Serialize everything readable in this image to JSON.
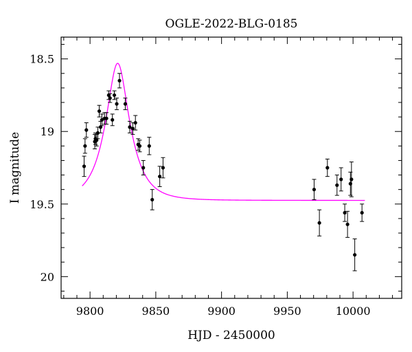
{
  "chart_data": {
    "type": "scatter",
    "title": "OGLE-2022-BLG-0185",
    "xlabel": "HJD - 2450000",
    "ylabel": "I magnitude",
    "xlim": [
      9778,
      10037
    ],
    "ylim": [
      20.15,
      18.35
    ],
    "y_inverted": true,
    "grid": false,
    "legend": "none",
    "x_major_ticks": [
      9800,
      9850,
      9900,
      9950,
      10000
    ],
    "x_tick_labels": [
      "9800",
      "9850",
      "9900",
      "9950",
      "10000"
    ],
    "x_minor_step": 10,
    "y_major_ticks": [
      18.5,
      19,
      19.5,
      20
    ],
    "y_tick_labels": [
      "18.5",
      "19",
      "19.5",
      "20"
    ],
    "y_minor_step": 0.1,
    "colors": {
      "points": "#000000",
      "model": "#ff00ff",
      "axes": "#000000"
    },
    "series": [
      {
        "name": "data",
        "points": [
          {
            "x": 9795.5,
            "y": 19.24,
            "err": 0.07
          },
          {
            "x": 9796.2,
            "y": 19.1,
            "err": 0.05
          },
          {
            "x": 9797.2,
            "y": 18.99,
            "err": 0.05
          },
          {
            "x": 9803.6,
            "y": 19.07,
            "err": 0.05
          },
          {
            "x": 9804.1,
            "y": 19.05,
            "err": 0.04
          },
          {
            "x": 9805.0,
            "y": 19.06,
            "err": 0.04
          },
          {
            "x": 9805.9,
            "y": 19.01,
            "err": 0.04
          },
          {
            "x": 9807.0,
            "y": 18.86,
            "err": 0.04
          },
          {
            "x": 9808.0,
            "y": 18.97,
            "err": 0.04
          },
          {
            "x": 9809.0,
            "y": 18.92,
            "err": 0.04
          },
          {
            "x": 9811.0,
            "y": 18.91,
            "err": 0.04
          },
          {
            "x": 9812.5,
            "y": 18.91,
            "err": 0.04
          },
          {
            "x": 9814.2,
            "y": 18.75,
            "err": 0.03
          },
          {
            "x": 9815.2,
            "y": 18.77,
            "err": 0.03
          },
          {
            "x": 9817.0,
            "y": 18.92,
            "err": 0.04
          },
          {
            "x": 9818.5,
            "y": 18.75,
            "err": 0.03
          },
          {
            "x": 9820.3,
            "y": 18.81,
            "err": 0.04
          },
          {
            "x": 9822.4,
            "y": 18.65,
            "err": 0.05
          },
          {
            "x": 9826.8,
            "y": 18.81,
            "err": 0.04
          },
          {
            "x": 9830.2,
            "y": 18.97,
            "err": 0.04
          },
          {
            "x": 9832.5,
            "y": 18.98,
            "err": 0.04
          },
          {
            "x": 9834.5,
            "y": 18.94,
            "err": 0.05
          },
          {
            "x": 9836.6,
            "y": 19.09,
            "err": 0.04
          },
          {
            "x": 9837.8,
            "y": 19.1,
            "err": 0.04
          },
          {
            "x": 9840.5,
            "y": 19.25,
            "err": 0.05
          },
          {
            "x": 9845.0,
            "y": 19.1,
            "err": 0.06
          },
          {
            "x": 9847.3,
            "y": 19.47,
            "err": 0.07
          },
          {
            "x": 9853.0,
            "y": 19.31,
            "err": 0.07
          },
          {
            "x": 9855.5,
            "y": 19.25,
            "err": 0.07
          },
          {
            "x": 9970.4,
            "y": 19.4,
            "err": 0.07
          },
          {
            "x": 9974.4,
            "y": 19.63,
            "err": 0.09
          },
          {
            "x": 9980.5,
            "y": 19.25,
            "err": 0.06
          },
          {
            "x": 9987.8,
            "y": 19.37,
            "err": 0.07
          },
          {
            "x": 9990.9,
            "y": 19.33,
            "err": 0.08
          },
          {
            "x": 9993.7,
            "y": 19.56,
            "err": 0.06
          },
          {
            "x": 9995.8,
            "y": 19.64,
            "err": 0.09
          },
          {
            "x": 9998.0,
            "y": 19.36,
            "err": 0.08
          },
          {
            "x": 9998.8,
            "y": 19.33,
            "err": 0.12
          },
          {
            "x": 10001.3,
            "y": 19.85,
            "err": 0.11
          },
          {
            "x": 10006.8,
            "y": 19.56,
            "err": 0.06
          }
        ]
      },
      {
        "name": "model",
        "type": "line",
        "model": {
          "baseline": 19.475,
          "t0": 9821.0,
          "tE": 16.5,
          "u0": 0.45
        },
        "x_range": [
          9794.0,
          10009.0
        ]
      }
    ]
  }
}
